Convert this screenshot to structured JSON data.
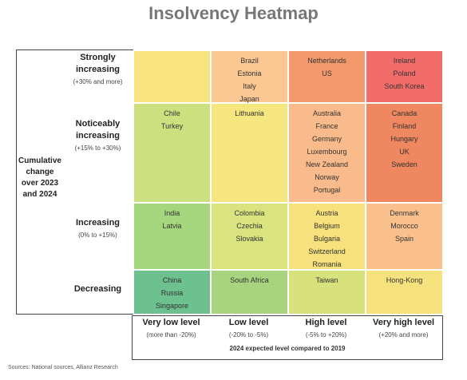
{
  "title": "Insolvency Heatmap",
  "side_label": "Cumulative change over 2023 and 2024",
  "rows": [
    {
      "label": "Strongly increasing",
      "range": "(+30% and more)"
    },
    {
      "label": "Noticeably increasing",
      "range": "(+15% to +30%)"
    },
    {
      "label": "Increasing",
      "range": "(0% to +15%)"
    },
    {
      "label": "Decreasing"
    }
  ],
  "columns": [
    {
      "label": "Very low level",
      "range": "(more than -20%)"
    },
    {
      "label": "Low level",
      "range": "(-20% to -5%)"
    },
    {
      "label": "High level",
      "range": "(-5% to +20%)"
    },
    {
      "label": "Very high level",
      "range": "(+20% and more)"
    }
  ],
  "column_note": "2024 expected level compared to 2019",
  "cells": [
    [
      [],
      [
        "Brazil",
        "Estonia",
        "Italy",
        "Japan"
      ],
      [
        "Netherlands",
        "US"
      ],
      [
        "Ireland",
        "Poland",
        "South Korea"
      ]
    ],
    [
      [
        "Chile",
        "Turkey"
      ],
      [
        "Lithuania"
      ],
      [
        "Australia",
        "France",
        "Germany",
        "Luxembourg",
        "New Zealand",
        "Norway",
        "Portugal"
      ],
      [
        "Canada",
        "Finland",
        "Hungary",
        "UK",
        "Sweden"
      ]
    ],
    [
      [
        "India",
        "Latvia"
      ],
      [
        "Colombia",
        "Czechia",
        "Slovakia"
      ],
      [
        "Austria",
        "Belgium",
        "Bulgaria",
        "Switzerland",
        "Romania"
      ],
      [
        "Denmark",
        "Morocco",
        "Spain"
      ]
    ],
    [
      [
        "China",
        "Russia",
        "Singapore"
      ],
      [
        "South Africa"
      ],
      [
        "Taiwan"
      ],
      [
        "Hong-Kong"
      ]
    ]
  ],
  "source": "Sources: National sources, Allianz Research"
}
